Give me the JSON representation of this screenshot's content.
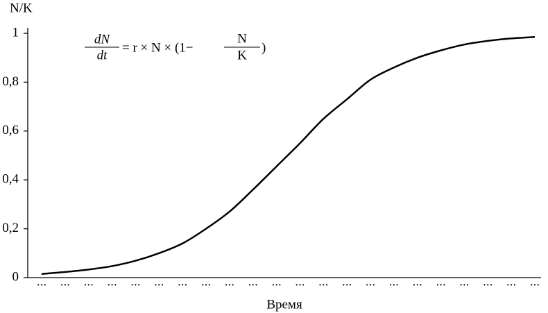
{
  "chart_data": {
    "type": "line",
    "y_label": "N/K",
    "x_label": "Время",
    "formula": {
      "numerator_left": "dN",
      "denominator_left": "dt",
      "middle": "= r × N × (1−",
      "numerator_right": "N",
      "denominator_right": "K",
      "close": ")"
    },
    "categories": [
      "...",
      "...",
      "...",
      "...",
      "...",
      "...",
      "...",
      "...",
      "...",
      "...",
      "...",
      "...",
      "...",
      "...",
      "...",
      "...",
      "...",
      "...",
      "...",
      "...",
      "...",
      "..."
    ],
    "values": [
      0.015,
      0.023,
      0.033,
      0.047,
      0.069,
      0.1,
      0.14,
      0.2,
      0.27,
      0.36,
      0.455,
      0.55,
      0.65,
      0.73,
      0.81,
      0.86,
      0.9,
      0.93,
      0.954,
      0.969,
      0.979,
      0.985
    ],
    "color": "#000000",
    "ylim": [
      0,
      1
    ],
    "yticks": [
      0,
      {
        "value": 0.2,
        "label": "0,2"
      },
      {
        "value": 0.4,
        "label": "0,4"
      },
      {
        "value": 0.6,
        "label": "0,6"
      },
      {
        "value": 0.8,
        "label": "0,8"
      },
      1
    ]
  }
}
